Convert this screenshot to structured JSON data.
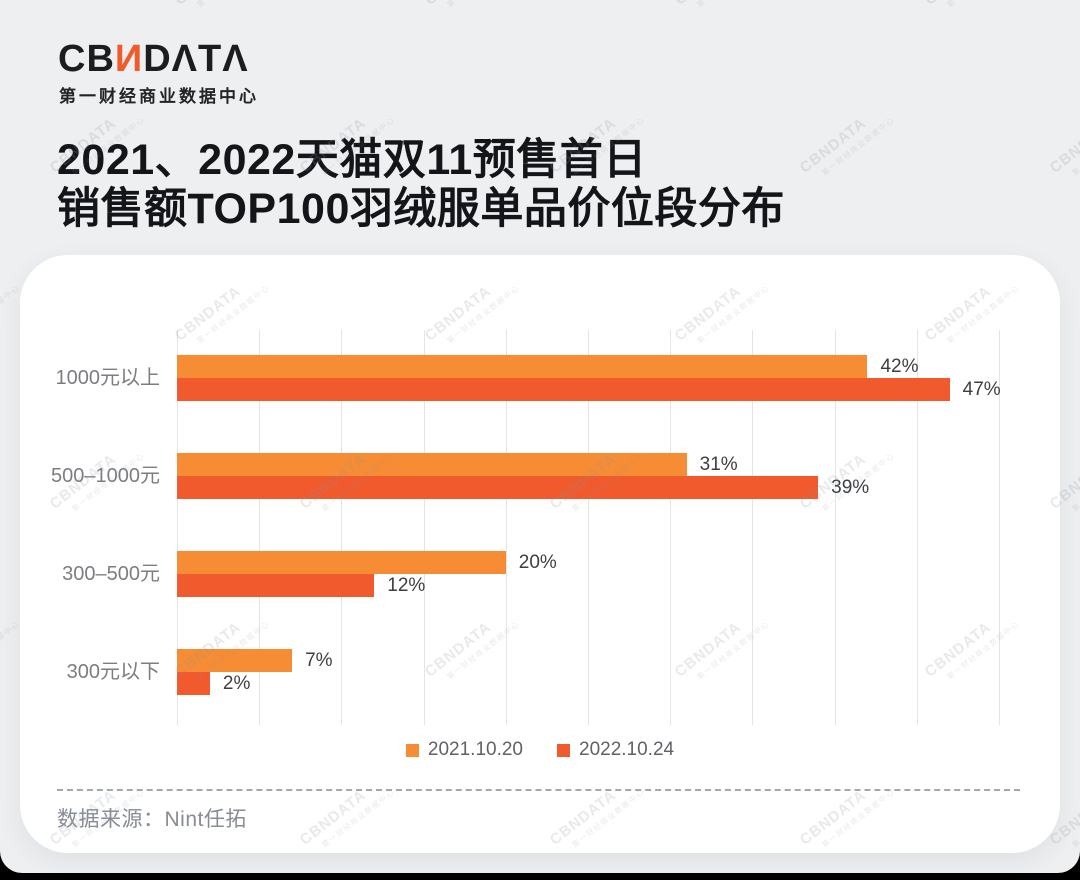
{
  "page": {
    "background": "#edeff1",
    "watermark": {
      "brand": "CBNDATA",
      "sub": "第一财经商业数据中心"
    }
  },
  "header": {
    "logo": {
      "part_left": "CB",
      "part_accent": "И",
      "part_right": "DΛTΛ",
      "accent_color": "#F15A29",
      "subtitle": "第一财经商业数据中心"
    },
    "title_line1": "2021、2022天猫双11预售首日",
    "title_line2": "销售额TOP100羽绒服单品价位段分布"
  },
  "chart_data": {
    "type": "bar",
    "orientation": "horizontal",
    "title": "2021、2022天猫双11预售首日销售额TOP100羽绒服单品价位段分布",
    "categories": [
      "1000元以上",
      "500–1000元",
      "300–500元",
      "300元以下"
    ],
    "series": [
      {
        "name": "2021.10.20",
        "color": "#F68C34",
        "values": [
          42,
          31,
          20,
          7
        ]
      },
      {
        "name": "2022.10.24",
        "color": "#F05A2D",
        "values": [
          47,
          39,
          12,
          2
        ]
      }
    ],
    "value_suffix": "%",
    "xlim": [
      0,
      50
    ],
    "gridline_step_pct": 5,
    "grid": true,
    "legend_position": "bottom",
    "xlabel": "",
    "ylabel": ""
  },
  "footer": {
    "source": "数据来源：Nint任拓"
  }
}
